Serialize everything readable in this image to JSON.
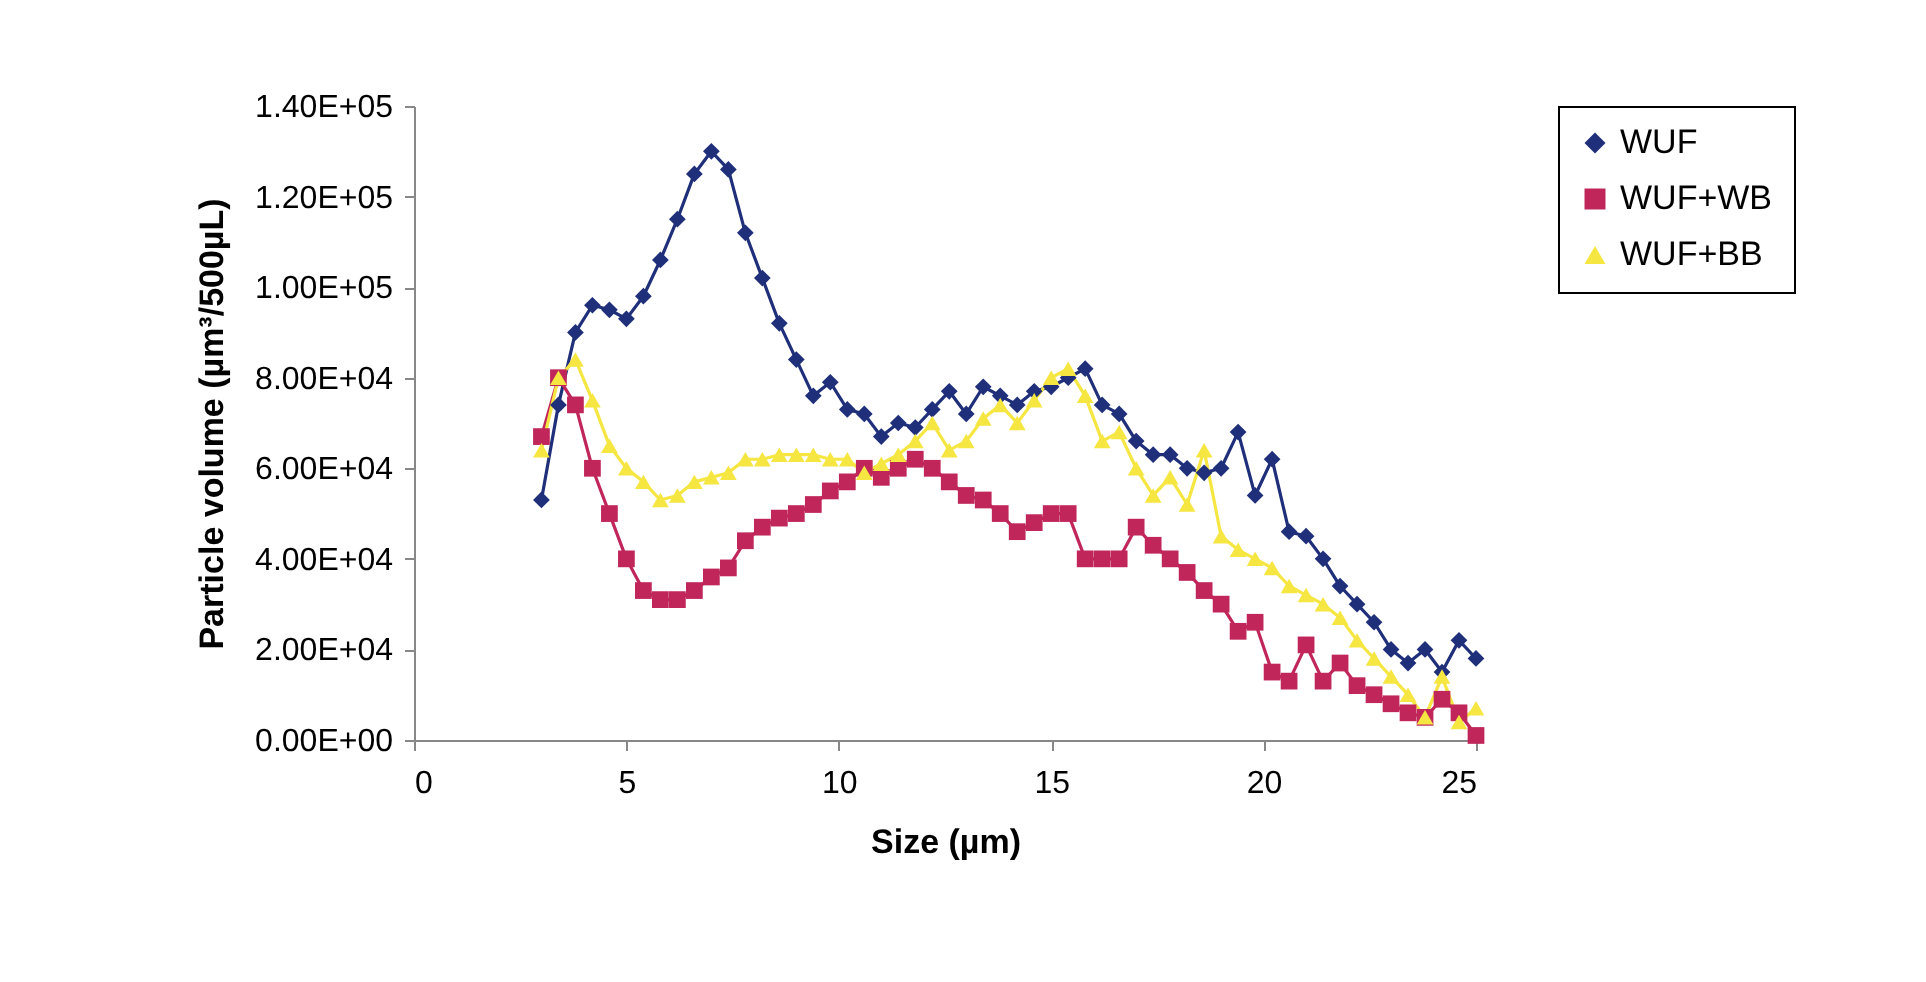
{
  "chart_data": {
    "type": "line",
    "xlabel": "Size (µm)",
    "ylabel": "Particle volume (µm³/500µL)",
    "x": [
      3.0,
      3.4,
      3.8,
      4.2,
      4.6,
      5.0,
      5.4,
      5.8,
      6.2,
      6.6,
      7.0,
      7.4,
      7.8,
      8.2,
      8.6,
      9.0,
      9.4,
      9.8,
      10.2,
      10.6,
      11.0,
      11.4,
      11.8,
      12.2,
      12.6,
      13.0,
      13.4,
      13.8,
      14.2,
      14.6,
      15.0,
      15.4,
      15.8,
      16.2,
      16.6,
      17.0,
      17.4,
      17.8,
      18.2,
      18.6,
      19.0,
      19.4,
      19.8,
      20.2,
      20.6,
      21.0,
      21.4,
      21.8,
      22.2,
      22.6,
      23.0,
      23.4,
      23.8,
      24.2,
      24.6,
      25.0
    ],
    "series": [
      {
        "name": "WUF",
        "color": "#1f2f7a",
        "marker": "diamond",
        "values": [
          53000,
          74000,
          90000,
          96000,
          95000,
          93000,
          98000,
          106000,
          115000,
          125000,
          130000,
          126000,
          112000,
          102000,
          92000,
          84000,
          76000,
          79000,
          73000,
          72000,
          67000,
          70000,
          69000,
          73000,
          77000,
          72000,
          78000,
          76000,
          74000,
          77000,
          78000,
          80000,
          82000,
          74000,
          72000,
          66000,
          63000,
          63000,
          60000,
          59000,
          60000,
          68000,
          54000,
          62000,
          46000,
          45000,
          40000,
          34000,
          30000,
          26000,
          20000,
          17000,
          20000,
          15000,
          22000,
          18000
        ]
      },
      {
        "name": "WUF+WB",
        "color": "#c0265a",
        "marker": "square",
        "values": [
          67000,
          80000,
          74000,
          60000,
          50000,
          40000,
          33000,
          31000,
          31000,
          33000,
          36000,
          38000,
          44000,
          47000,
          49000,
          50000,
          52000,
          55000,
          57000,
          60000,
          58000,
          60000,
          62000,
          60000,
          57000,
          54000,
          53000,
          50000,
          46000,
          48000,
          50000,
          50000,
          40000,
          40000,
          40000,
          47000,
          43000,
          40000,
          37000,
          33000,
          30000,
          24000,
          26000,
          15000,
          13000,
          21000,
          13000,
          17000,
          12000,
          10000,
          8000,
          6000,
          5000,
          9000,
          6000,
          1000
        ]
      },
      {
        "name": "WUF+BB",
        "color": "#f5e642",
        "marker": "triangle",
        "values": [
          64000,
          80000,
          84000,
          75000,
          65000,
          60000,
          57000,
          53000,
          54000,
          57000,
          58000,
          59000,
          62000,
          62000,
          63000,
          63000,
          63000,
          62000,
          62000,
          59000,
          61000,
          63000,
          66000,
          70000,
          64000,
          66000,
          71000,
          74000,
          70000,
          75000,
          80000,
          82000,
          76000,
          66000,
          68000,
          60000,
          54000,
          58000,
          52000,
          64000,
          45000,
          42000,
          40000,
          38000,
          34000,
          32000,
          30000,
          27000,
          22000,
          18000,
          14000,
          10000,
          5000,
          14000,
          4000,
          7000
        ]
      }
    ],
    "xlim": [
      0,
      25
    ],
    "xticks": [
      0,
      5,
      10,
      15,
      20,
      25
    ],
    "ylim": [
      0,
      140000
    ],
    "yticks": [
      {
        "value": 0,
        "label": "0.00E+00"
      },
      {
        "value": 20000,
        "label": "2.00E+04"
      },
      {
        "value": 40000,
        "label": "4.00E+04"
      },
      {
        "value": 60000,
        "label": "6.00E+04"
      },
      {
        "value": 80000,
        "label": "8.00E+04"
      },
      {
        "value": 100000,
        "label": "1.00E+05"
      },
      {
        "value": 120000,
        "label": "1.20E+05"
      },
      {
        "value": 140000,
        "label": "1.40E+05"
      }
    ],
    "legend": "right",
    "grid": false,
    "line_style": "solid"
  }
}
